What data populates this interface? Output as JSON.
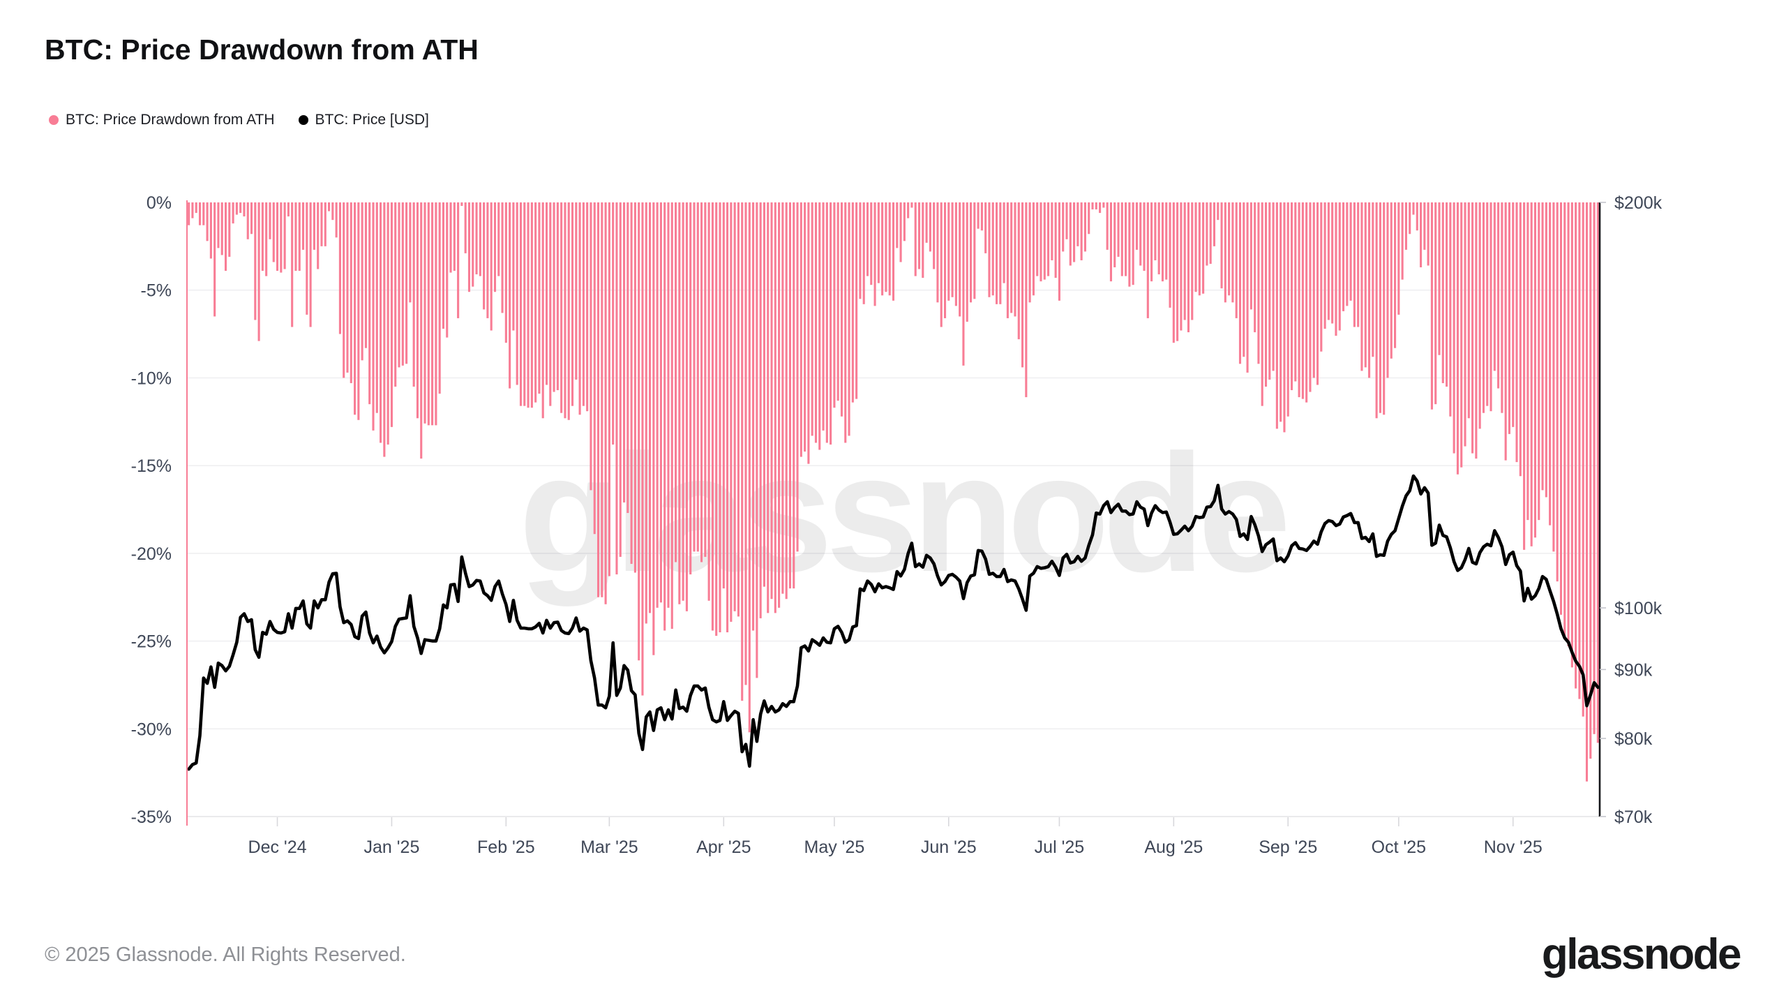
{
  "title": "BTC: Price Drawdown from ATH",
  "watermark": "glassnode",
  "footer": {
    "copyright": "© 2025 Glassnode. All Rights Reserved.",
    "logo": "glassnode"
  },
  "chart_data": {
    "type": "bar",
    "subtype": "bar+line dual-axis",
    "title": "BTC: Price Drawdown from ATH",
    "x_start": "Nov 2024",
    "x_end": "Nov 2025",
    "n_points": 383,
    "grid": "horizontal",
    "legend_position": "top-left",
    "left_axis": {
      "unit": "%",
      "min": -35,
      "max": 0,
      "ticks": [
        {
          "label": "0%",
          "value": 0
        },
        {
          "label": "-5%",
          "value": -5
        },
        {
          "label": "-10%",
          "value": -10
        },
        {
          "label": "-15%",
          "value": -15
        },
        {
          "label": "-20%",
          "value": -20
        },
        {
          "label": "-25%",
          "value": -25
        },
        {
          "label": "-30%",
          "value": -30
        },
        {
          "label": "-35%",
          "value": -35
        }
      ]
    },
    "right_axis": {
      "unit": "USD",
      "scale": "log",
      "ticks": [
        {
          "label": "$200k",
          "value": 200
        },
        {
          "label": "$100k",
          "value": 100
        },
        {
          "label": "$90k",
          "value": 90
        },
        {
          "label": "$80k",
          "value": 80
        },
        {
          "label": "$70k",
          "value": 70
        }
      ]
    },
    "x_ticks": [
      {
        "label": "Dec '24",
        "day": 24
      },
      {
        "label": "Jan '25",
        "day": 55
      },
      {
        "label": "Feb '25",
        "day": 86
      },
      {
        "label": "Mar '25",
        "day": 114
      },
      {
        "label": "Apr '25",
        "day": 145
      },
      {
        "label": "May '25",
        "day": 175
      },
      {
        "label": "Jun '25",
        "day": 206
      },
      {
        "label": "Jul '25",
        "day": 236
      },
      {
        "label": "Aug '25",
        "day": 267
      },
      {
        "label": "Sep '25",
        "day": 298
      },
      {
        "label": "Oct '25",
        "day": 328
      },
      {
        "label": "Nov '25",
        "day": 359
      }
    ],
    "series": [
      {
        "name": "BTC: Price Drawdown from ATH",
        "type": "bar",
        "axis": "left",
        "unit": "%",
        "color": "#f87d95",
        "values": [
          -1.3,
          -0.9,
          -0.6,
          -1.3,
          -1.3,
          -2.2,
          -3.2,
          -6.5,
          -2.6,
          -3.0,
          -3.9,
          -3.1,
          -1.2,
          -0.7,
          -0.6,
          -0.8,
          -2.1,
          -1.8,
          -6.7,
          -7.9,
          -3.9,
          -4.2,
          -2.1,
          -3.4,
          -3.9,
          -4.0,
          -3.8,
          -0.8,
          -7.1,
          -3.9,
          -3.9,
          -2.7,
          -6.4,
          -7.1,
          -2.7,
          -3.8,
          -2.5,
          -2.5,
          -0.5,
          -1.0,
          -2.0,
          -7.5,
          -10.0,
          -9.7,
          -10.3,
          -12.1,
          -12.4,
          -9.0,
          -8.3,
          -11.5,
          -13.0,
          -12.0,
          -13.7,
          -14.5,
          -13.8,
          -12.8,
          -10.5,
          -9.4,
          -9.3,
          -9.2,
          -5.7,
          -10.5,
          -12.3,
          -14.6,
          -12.6,
          -12.7,
          -12.7,
          -12.7,
          -10.9,
          -7.2,
          -7.7,
          -4.0,
          -3.9,
          -6.6,
          -0.2,
          -2.9,
          -5.1,
          -4.8,
          -4.1,
          -4.2,
          -6.1,
          -6.6,
          -7.3,
          -5.1,
          -4.2,
          -6.3,
          -8.0,
          -10.6,
          -7.3,
          -10.4,
          -11.6,
          -11.6,
          -11.7,
          -11.7,
          -11.4,
          -10.9,
          -12.3,
          -10.4,
          -11.6,
          -10.8,
          -10.7,
          -12.0,
          -12.3,
          -12.4,
          -11.6,
          -10.1,
          -12.1,
          -11.6,
          -11.9,
          -16.4,
          -18.9,
          -22.5,
          -22.5,
          -22.9,
          -21.3,
          -13.8,
          -21.2,
          -20.2,
          -17.1,
          -17.7,
          -20.6,
          -21.1,
          -26.1,
          -28.1,
          -24.0,
          -23.4,
          -25.8,
          -23.1,
          -22.8,
          -24.4,
          -23.1,
          -24.3,
          -20.5,
          -22.9,
          -22.7,
          -23.3,
          -21.2,
          -19.9,
          -19.9,
          -20.5,
          -20.2,
          -22.7,
          -24.4,
          -24.7,
          -24.5,
          -22.0,
          -24.5,
          -23.9,
          -23.3,
          -23.6,
          -28.4,
          -27.5,
          -30.2,
          -24.4,
          -27.1,
          -23.7,
          -21.9,
          -23.4,
          -22.6,
          -23.4,
          -23.1,
          -22.3,
          -22.6,
          -22.0,
          -22.0,
          -19.9,
          -14.5,
          -14.2,
          -14.9,
          -13.3,
          -13.7,
          -14.1,
          -13.0,
          -13.7,
          -13.8,
          -11.7,
          -11.3,
          -12.2,
          -13.7,
          -13.3,
          -11.4,
          -11.2,
          -5.5,
          -5.8,
          -4.2,
          -4.7,
          -5.9,
          -4.6,
          -5.3,
          -5.1,
          -5.3,
          -5.6,
          -2.6,
          -3.4,
          -2.2,
          -0.9,
          -0.3,
          -4.2,
          -3.8,
          -4.3,
          -2.3,
          -2.8,
          -3.8,
          -5.7,
          -7.1,
          -6.6,
          -5.6,
          -5.4,
          -5.9,
          -6.5,
          -9.3,
          -6.8,
          -5.7,
          -5.5,
          -1.5,
          -1.6,
          -2.9,
          -5.4,
          -5.3,
          -5.8,
          -5.8,
          -4.6,
          -6.6,
          -6.3,
          -6.5,
          -7.8,
          -9.4,
          -11.1,
          -5.7,
          -5.3,
          -4.2,
          -4.5,
          -4.4,
          -4.2,
          -3.3,
          -4.3,
          -5.6,
          -2.8,
          -2.1,
          -3.6,
          -3.4,
          -2.5,
          -3.3,
          -2.8,
          -1.8,
          -0.4,
          -0.4,
          -0.6,
          -0.3,
          -2.7,
          -4.5,
          -3.7,
          -3.1,
          -4.2,
          -4.2,
          -4.8,
          -4.7,
          -2.7,
          -3.6,
          -3.9,
          -6.6,
          -4.5,
          -3.3,
          -4.1,
          -4.5,
          -4.4,
          -6.0,
          -8.0,
          -7.9,
          -7.3,
          -6.7,
          -7.4,
          -6.7,
          -5.1,
          -5.3,
          -5.2,
          -3.6,
          -3.5,
          -2.5,
          -1.0,
          -4.9,
          -5.7,
          -5.3,
          -5.7,
          -6.6,
          -9.2,
          -8.8,
          -9.7,
          -6.1,
          -7.4,
          -9.2,
          -11.6,
          -10.5,
          -10.1,
          -9.6,
          -12.9,
          -12.5,
          -13.1,
          -12.2,
          -10.7,
          -10.2,
          -11.1,
          -11.2,
          -11.4,
          -10.8,
          -10.0,
          -10.4,
          -8.5,
          -7.2,
          -6.7,
          -6.9,
          -7.6,
          -7.3,
          -6.2,
          -5.9,
          -5.6,
          -7.1,
          -7.1,
          -9.6,
          -9.4,
          -10.0,
          -8.8,
          -12.3,
          -12.0,
          -12.1,
          -10.0,
          -8.9,
          -8.3,
          -6.4,
          -4.4,
          -2.7,
          -1.8,
          -0.7,
          -1.6,
          -3.7,
          -2.7,
          -3.6,
          -11.8,
          -11.5,
          -8.7,
          -10.3,
          -10.5,
          -12.2,
          -14.3,
          -15.5,
          -15.1,
          -13.9,
          -12.3,
          -14.3,
          -14.6,
          -12.9,
          -12.0,
          -11.6,
          -11.9,
          -9.6,
          -10.6,
          -12.0,
          -14.7,
          -13.2,
          -12.8,
          -14.8,
          -15.6,
          -19.8,
          -18.1,
          -19.6,
          -19.1,
          -18.1,
          -16.4,
          -16.8,
          -18.4,
          -19.9,
          -21.6,
          -23.5,
          -24.7,
          -25.3,
          -26.5,
          -27.7,
          -28.3,
          -29.3,
          -33.0,
          -31.7,
          -30.3,
          -30.8
        ]
      },
      {
        "name": "BTC: Price [USD]",
        "type": "line",
        "axis": "right",
        "unit": "USD thousands",
        "color": "#000000",
        "values": [
          75.9,
          76.5,
          76.7,
          80.4,
          88.7,
          87.9,
          90.4,
          87.3,
          91.0,
          90.6,
          89.8,
          90.5,
          92.3,
          94.3,
          98.4,
          99.0,
          97.7,
          98.0,
          93.1,
          91.9,
          95.9,
          95.6,
          97.7,
          96.4,
          95.9,
          95.8,
          96.0,
          99.0,
          96.6,
          99.9,
          99.9,
          101.2,
          97.3,
          96.6,
          101.2,
          100.0,
          101.4,
          101.4,
          104.5,
          106.0,
          106.1,
          100.2,
          97.5,
          97.8,
          97.2,
          95.2,
          94.9,
          98.6,
          99.3,
          95.8,
          94.2,
          95.3,
          93.5,
          92.6,
          93.4,
          94.4,
          96.9,
          98.1,
          98.2,
          98.3,
          102.1,
          96.9,
          95.0,
          92.5,
          94.7,
          94.6,
          94.5,
          94.5,
          96.5,
          100.5,
          100.0,
          104.0,
          104.1,
          101.1,
          109.1,
          106.1,
          103.7,
          104.0,
          104.8,
          104.7,
          102.6,
          102.1,
          101.3,
          103.7,
          104.7,
          102.4,
          100.6,
          97.7,
          101.3,
          97.9,
          96.6,
          96.6,
          96.5,
          96.5,
          96.8,
          97.4,
          95.8,
          97.9,
          96.6,
          97.5,
          97.6,
          96.2,
          95.8,
          95.7,
          96.6,
          98.3,
          96.1,
          96.6,
          96.3,
          91.4,
          88.7,
          84.7,
          84.7,
          84.3,
          86.0,
          94.2,
          86.1,
          87.2,
          90.6,
          89.9,
          86.8,
          86.2,
          80.7,
          78.5,
          83.0,
          83.7,
          81.1,
          84.0,
          84.3,
          82.6,
          84.0,
          82.7,
          86.9,
          84.2,
          84.4,
          83.8,
          86.1,
          87.5,
          87.5,
          86.9,
          87.2,
          84.4,
          82.6,
          82.3,
          82.5,
          85.2,
          82.5,
          83.2,
          83.8,
          83.5,
          78.2,
          79.2,
          76.3,
          82.6,
          79.6,
          83.4,
          85.3,
          83.7,
          84.5,
          83.7,
          84.0,
          84.9,
          84.5,
          85.2,
          85.2,
          87.5,
          93.4,
          93.7,
          92.9,
          94.7,
          94.3,
          93.8,
          95.0,
          94.3,
          94.2,
          96.5,
          96.9,
          95.9,
          94.3,
          94.7,
          96.8,
          97.0,
          103.3,
          103.0,
          104.7,
          104.1,
          102.8,
          104.2,
          103.5,
          103.7,
          103.5,
          103.2,
          106.4,
          105.6,
          106.8,
          109.7,
          111.7,
          107.3,
          107.8,
          107.2,
          109.4,
          108.9,
          107.8,
          105.6,
          104.0,
          104.6,
          105.7,
          105.9,
          105.4,
          104.7,
          101.6,
          104.4,
          105.6,
          105.8,
          110.3,
          110.2,
          108.7,
          105.9,
          106.1,
          105.5,
          105.5,
          106.8,
          104.6,
          104.9,
          104.7,
          103.3,
          101.5,
          99.6,
          105.6,
          106.1,
          107.3,
          107.0,
          107.1,
          107.3,
          108.3,
          107.2,
          105.7,
          108.9,
          109.6,
          108.0,
          108.2,
          109.2,
          108.3,
          108.9,
          111.3,
          113.3,
          117.6,
          117.4,
          119.1,
          119.9,
          117.7,
          118.7,
          119.4,
          118.0,
          118.0,
          117.3,
          117.4,
          119.9,
          118.8,
          118.4,
          115.1,
          117.6,
          119.1,
          118.2,
          117.7,
          117.8,
          115.8,
          113.4,
          113.5,
          114.2,
          115.0,
          114.1,
          115.0,
          116.9,
          116.7,
          116.8,
          118.8,
          118.9,
          120.1,
          123.3,
          118.4,
          117.4,
          117.9,
          117.4,
          116.3,
          113.0,
          113.5,
          112.4,
          116.9,
          115.3,
          113.1,
          110.1,
          111.4,
          111.9,
          112.5,
          108.4,
          108.9,
          108.2,
          109.3,
          111.2,
          111.8,
          110.7,
          110.6,
          110.3,
          111.1,
          112.1,
          111.5,
          113.9,
          115.5,
          116.1,
          115.9,
          115.1,
          115.4,
          116.8,
          117.1,
          117.5,
          115.7,
          115.7,
          112.6,
          112.8,
          112.0,
          113.5,
          109.2,
          109.5,
          109.4,
          112.1,
          113.4,
          114.1,
          116.5,
          119.0,
          121.1,
          122.2,
          125.3,
          124.2,
          121.5,
          122.8,
          121.7,
          111.3,
          111.7,
          115.2,
          113.2,
          112.9,
          110.8,
          108.2,
          106.6,
          107.1,
          108.6,
          110.7,
          108.1,
          107.8,
          109.9,
          111.0,
          111.5,
          111.2,
          114.1,
          112.8,
          111.0,
          107.7,
          109.5,
          110.0,
          107.5,
          106.5,
          101.2,
          103.4,
          101.5,
          102.1,
          103.4,
          105.5,
          105.0,
          103.0,
          101.1,
          98.9,
          96.5,
          95.0,
          94.3,
          92.7,
          91.3,
          90.5,
          89.2,
          84.6,
          86.2,
          88.0,
          87.3
        ]
      }
    ]
  }
}
